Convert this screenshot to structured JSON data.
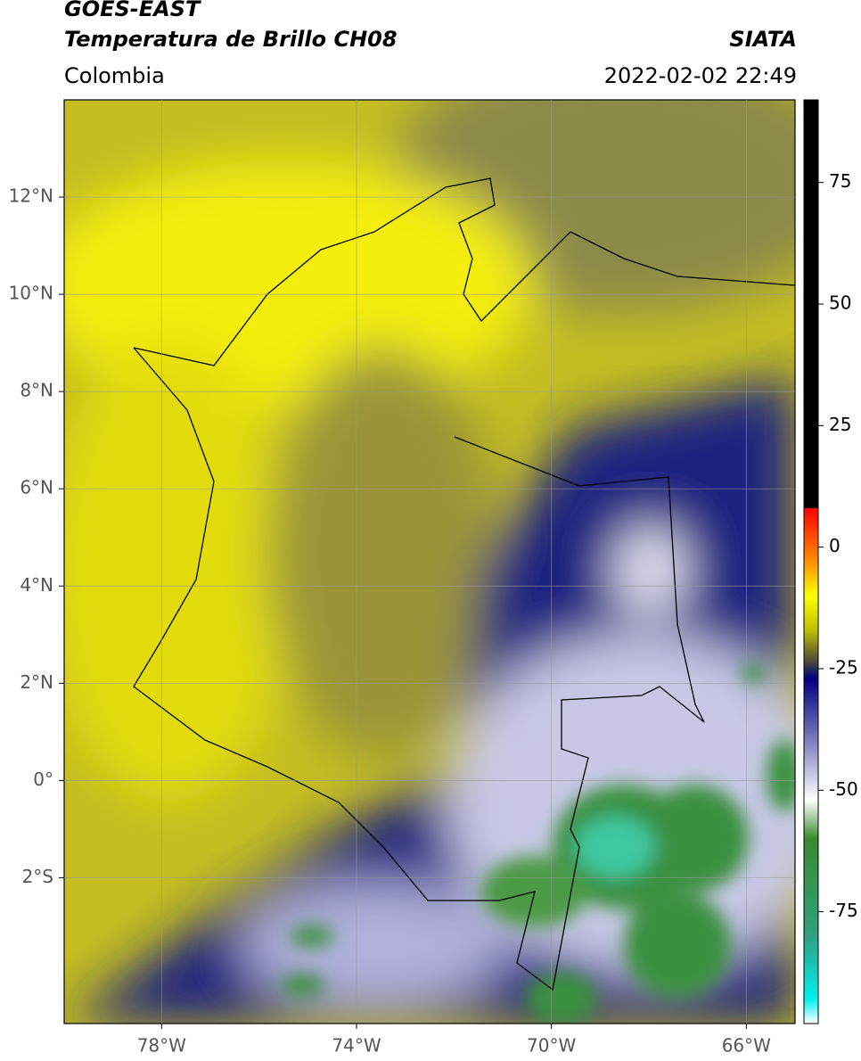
{
  "header": {
    "title": "GOES-EAST",
    "subtitle": "Temperatura de Brillo CH08",
    "source": "SIATA",
    "region": "Colombia",
    "timestamp": "2022-02-02 22:49"
  },
  "map": {
    "xlim": [
      -80,
      -65
    ],
    "ylim": [
      -5,
      14
    ],
    "xticks": [
      {
        "value": -78,
        "label": "78°W"
      },
      {
        "value": -74,
        "label": "74°W"
      },
      {
        "value": -70,
        "label": "70°W"
      },
      {
        "value": -66,
        "label": "66°W"
      }
    ],
    "yticks": [
      {
        "value": 12,
        "label": "12°N"
      },
      {
        "value": 10,
        "label": "10°N"
      },
      {
        "value": 8,
        "label": "8°N"
      },
      {
        "value": 6,
        "label": "6°N"
      },
      {
        "value": 4,
        "label": "4°N"
      },
      {
        "value": 2,
        "label": "2°N"
      },
      {
        "value": 0,
        "label": "0°"
      },
      {
        "value": -2,
        "label": "2°S"
      }
    ],
    "grid": true
  },
  "colorbar": {
    "lim": [
      -98,
      92
    ],
    "ticks": [
      75,
      50,
      25,
      0,
      -25,
      -50,
      -75
    ],
    "colormap": [
      {
        "value": -98,
        "color": "#ffffff"
      },
      {
        "value": -93,
        "color": "#00f0f0"
      },
      {
        "value": -80,
        "color": "#30a080"
      },
      {
        "value": -60,
        "color": "#3a8a30"
      },
      {
        "value": -52,
        "color": "#ffffff"
      },
      {
        "value": -40,
        "color": "#8080c0"
      },
      {
        "value": -27,
        "color": "#000080"
      },
      {
        "value": -24,
        "color": "#404040"
      },
      {
        "value": -17,
        "color": "#c0c000"
      },
      {
        "value": -10,
        "color": "#ffff00"
      },
      {
        "value": -3,
        "color": "#ff9000"
      },
      {
        "value": 8,
        "color": "#ff0000"
      },
      {
        "value": 8.01,
        "color": "#000000"
      },
      {
        "value": 92,
        "color": "#000000"
      }
    ]
  }
}
